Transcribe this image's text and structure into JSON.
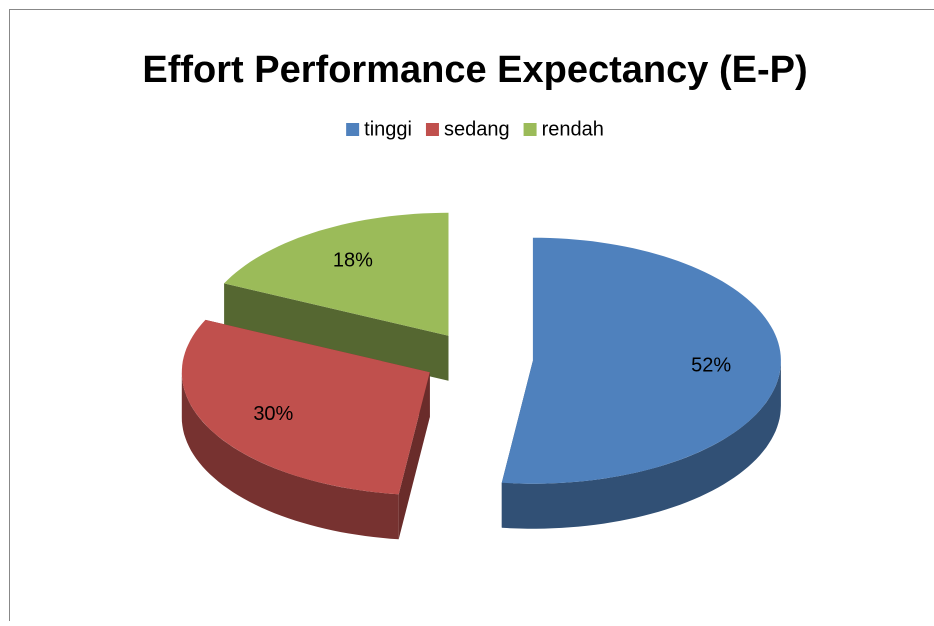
{
  "chart_data": {
    "type": "pie",
    "title": "Effort Performance Expectancy (E-P)",
    "categories": [
      "tinggi",
      "sedang",
      "rendah"
    ],
    "values": [
      52,
      30,
      18
    ],
    "value_labels": [
      "52%",
      "30%",
      "18%"
    ],
    "colors": [
      "#4f81bd",
      "#c0504d",
      "#9bbb59"
    ],
    "legend": "top"
  }
}
